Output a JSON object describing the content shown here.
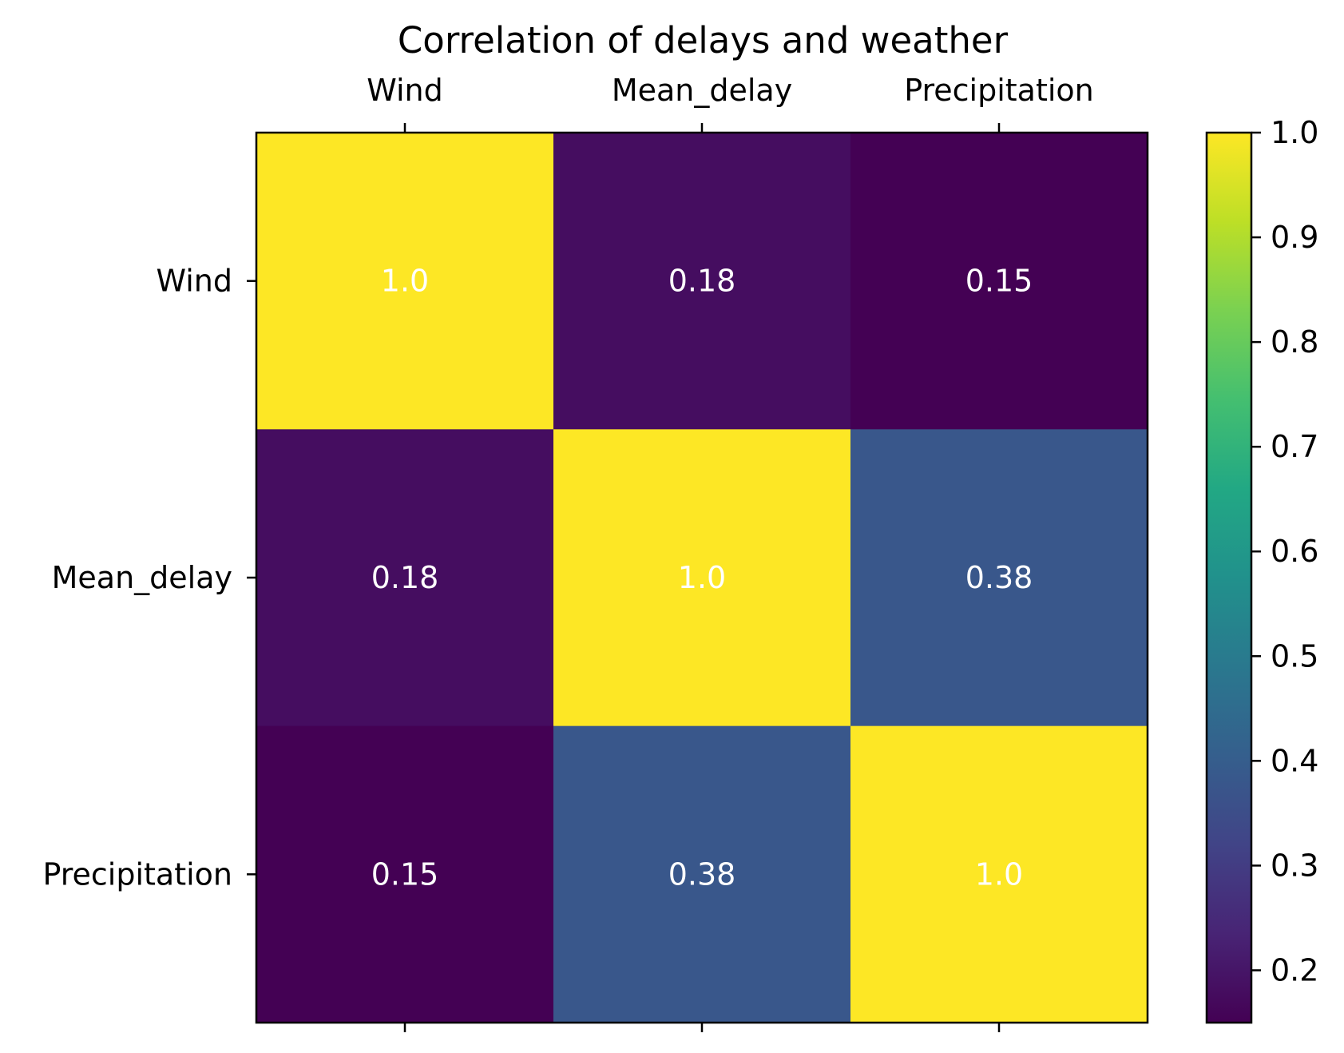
{
  "chart_data": {
    "type": "heatmap",
    "title": "Correlation of delays and weather",
    "x_labels": [
      "Wind",
      "Mean_delay",
      "Precipitation"
    ],
    "y_labels": [
      "Wind",
      "Mean_delay",
      "Precipitation"
    ],
    "values": [
      [
        1.0,
        0.18,
        0.15
      ],
      [
        0.18,
        1.0,
        0.38
      ],
      [
        0.15,
        0.38,
        1.0
      ]
    ],
    "cell_labels": [
      [
        "1.0",
        "0.18",
        "0.15"
      ],
      [
        "0.18",
        "1.0",
        "0.38"
      ],
      [
        "0.15",
        "0.38",
        "1.0"
      ]
    ],
    "x_tick_position": "top",
    "colormap": "viridis",
    "colorbar": {
      "vmin": 0.15,
      "vmax": 1.0,
      "ticks": [
        0.2,
        0.3,
        0.4,
        0.5,
        0.6,
        0.7,
        0.8,
        0.9,
        1.0
      ],
      "tick_labels": [
        "0.2",
        "0.3",
        "0.4",
        "0.5",
        "0.6",
        "0.7",
        "0.8",
        "0.9",
        "1.0"
      ]
    },
    "grid": false
  }
}
